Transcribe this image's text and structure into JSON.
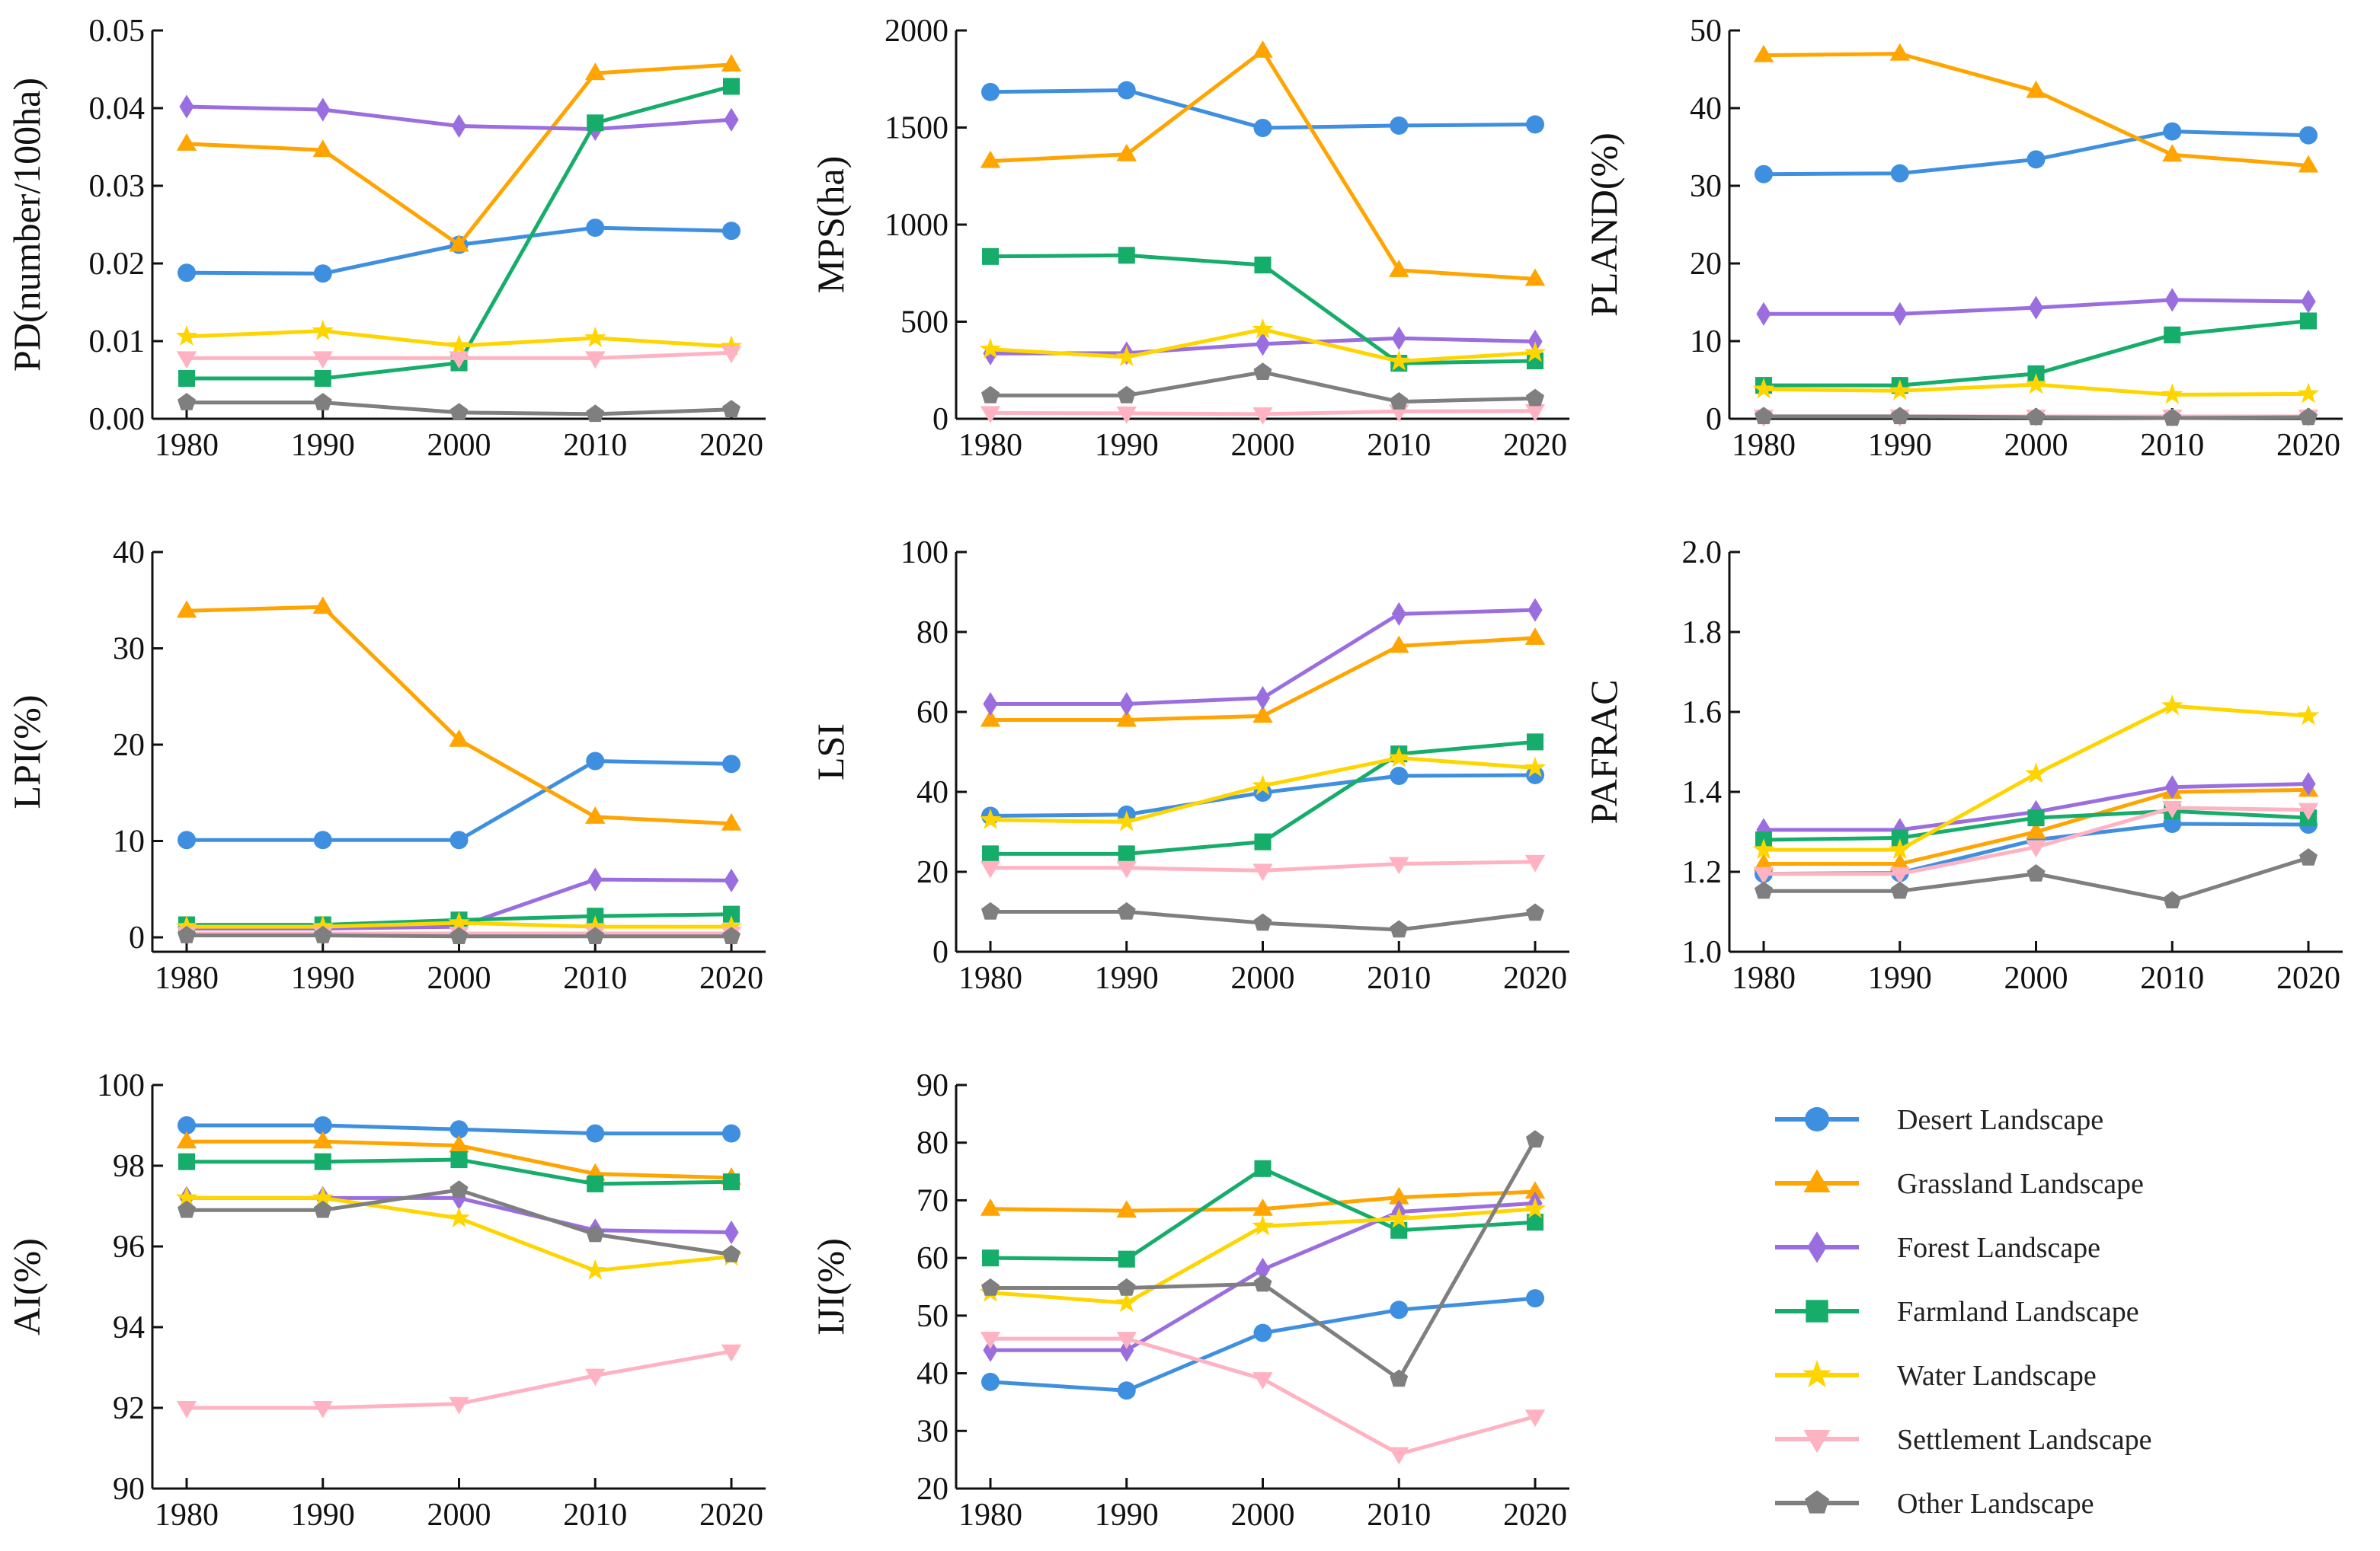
{
  "figure_title": "",
  "colors": {
    "Desert Landscape": "#3f8fe0",
    "Grassland Landscape": "#ffa400",
    "Forest Landscape": "#9b6ee0",
    "Farmland Landscape": "#16ad6a",
    "Water Landscape": "#ffd500",
    "Settlement Landscape": "#ffb3c2",
    "Other Landscape": "#7f7f7f"
  },
  "markers": {
    "Desert Landscape": "circle",
    "Grassland Landscape": "triangle-up",
    "Forest Landscape": "diamond",
    "Farmland Landscape": "square",
    "Water Landscape": "star",
    "Settlement Landscape": "triangle-down",
    "Other Landscape": "pentagon"
  },
  "legend": {
    "entries": [
      "Desert Landscape",
      "Grassland Landscape",
      "Forest Landscape",
      "Farmland Landscape",
      "Water Landscape",
      "Settlement Landscape",
      "Other Landscape"
    ]
  },
  "chart_data": [
    {
      "type": "line",
      "title": "",
      "ylabel": "PD(number/100ha)",
      "xlabel": "",
      "categories": [
        "1980",
        "1990",
        "2000",
        "2010",
        "2020"
      ],
      "ylim": [
        0,
        0.05
      ],
      "yticks": [
        "0.00",
        "0.01",
        "0.02",
        "0.03",
        "0.04",
        "0.05"
      ],
      "series": [
        {
          "name": "Desert Landscape",
          "values": [
            0.0188,
            0.0187,
            0.0224,
            0.0246,
            0.0242
          ]
        },
        {
          "name": "Grassland Landscape",
          "values": [
            0.0354,
            0.0346,
            0.0224,
            0.0445,
            0.0456
          ]
        },
        {
          "name": "Forest Landscape",
          "values": [
            0.0402,
            0.0398,
            0.0377,
            0.0373,
            0.0385
          ]
        },
        {
          "name": "Farmland Landscape",
          "values": [
            0.0052,
            0.0052,
            0.0072,
            0.0381,
            0.0428
          ]
        },
        {
          "name": "Water Landscape",
          "values": [
            0.0106,
            0.0113,
            0.0094,
            0.0104,
            0.0093
          ]
        },
        {
          "name": "Settlement Landscape",
          "values": [
            0.0078,
            0.0078,
            0.0078,
            0.0078,
            0.0085
          ]
        },
        {
          "name": "Other Landscape",
          "values": [
            0.0021,
            0.0021,
            0.0008,
            0.0006,
            0.0012
          ]
        }
      ]
    },
    {
      "type": "line",
      "title": "",
      "ylabel": "MPS(ha)",
      "xlabel": "",
      "categories": [
        "1980",
        "1990",
        "2000",
        "2010",
        "2020"
      ],
      "ylim": [
        0,
        2000
      ],
      "yticks": [
        "0",
        "500",
        "1000",
        "1500",
        "2000"
      ],
      "series": [
        {
          "name": "Desert Landscape",
          "values": [
            1683,
            1692,
            1498,
            1510,
            1516
          ]
        },
        {
          "name": "Grassland Landscape",
          "values": [
            1327,
            1362,
            1895,
            765,
            720
          ]
        },
        {
          "name": "Forest Landscape",
          "values": [
            336,
            338,
            385,
            415,
            398
          ]
        },
        {
          "name": "Farmland Landscape",
          "values": [
            836,
            842,
            792,
            286,
            298
          ]
        },
        {
          "name": "Water Landscape",
          "values": [
            358,
            318,
            460,
            296,
            340
          ]
        },
        {
          "name": "Settlement Landscape",
          "values": [
            30,
            28,
            24,
            38,
            40
          ]
        },
        {
          "name": "Other Landscape",
          "values": [
            120,
            120,
            240,
            88,
            105
          ]
        }
      ]
    },
    {
      "type": "line",
      "title": "",
      "ylabel": "PLAND(%)",
      "xlabel": "",
      "categories": [
        "1980",
        "1990",
        "2000",
        "2010",
        "2020"
      ],
      "ylim": [
        0,
        50
      ],
      "yticks": [
        "0",
        "10",
        "20",
        "30",
        "40",
        "50"
      ],
      "series": [
        {
          "name": "Desert Landscape",
          "values": [
            31.5,
            31.6,
            33.4,
            37.0,
            36.5
          ]
        },
        {
          "name": "Grassland Landscape",
          "values": [
            46.8,
            47.0,
            42.2,
            34.0,
            32.6
          ]
        },
        {
          "name": "Forest Landscape",
          "values": [
            13.5,
            13.5,
            14.3,
            15.3,
            15.1
          ]
        },
        {
          "name": "Farmland Landscape",
          "values": [
            4.3,
            4.3,
            5.8,
            10.8,
            12.6
          ]
        },
        {
          "name": "Water Landscape",
          "values": [
            3.8,
            3.6,
            4.4,
            3.1,
            3.2
          ]
        },
        {
          "name": "Settlement Landscape",
          "values": [
            0.3,
            0.3,
            0.3,
            0.3,
            0.3
          ]
        },
        {
          "name": "Other Landscape",
          "values": [
            0.3,
            0.3,
            0.2,
            0.1,
            0.2
          ]
        }
      ]
    },
    {
      "type": "line",
      "title": "",
      "ylabel": "LPI(%)",
      "xlabel": "",
      "categories": [
        "1980",
        "1990",
        "2000",
        "2010",
        "2020"
      ],
      "ylim": [
        -1.5,
        40
      ],
      "yticks": [
        "0",
        "10",
        "20",
        "30",
        "40"
      ],
      "series": [
        {
          "name": "Desert Landscape",
          "values": [
            10.1,
            10.1,
            10.1,
            18.3,
            18.0
          ]
        },
        {
          "name": "Grassland Landscape",
          "values": [
            33.9,
            34.3,
            20.5,
            12.5,
            11.8
          ]
        },
        {
          "name": "Forest Landscape",
          "values": [
            0.9,
            0.9,
            1.1,
            6.0,
            5.9
          ]
        },
        {
          "name": "Farmland Landscape",
          "values": [
            1.3,
            1.3,
            1.8,
            2.2,
            2.4
          ]
        },
        {
          "name": "Water Landscape",
          "values": [
            1.1,
            1.1,
            1.5,
            1.1,
            1.1
          ]
        },
        {
          "name": "Settlement Landscape",
          "values": [
            0.4,
            0.4,
            0.4,
            0.4,
            0.4
          ]
        },
        {
          "name": "Other Landscape",
          "values": [
            0.2,
            0.2,
            0.1,
            0.1,
            0.1
          ]
        }
      ]
    },
    {
      "type": "line",
      "title": "",
      "ylabel": "LSI",
      "xlabel": "",
      "categories": [
        "1980",
        "1990",
        "2000",
        "2010",
        "2020"
      ],
      "ylim": [
        0,
        100
      ],
      "yticks": [
        "0",
        "20",
        "40",
        "60",
        "80",
        "100"
      ],
      "series": [
        {
          "name": "Desert Landscape",
          "values": [
            34.0,
            34.3,
            39.8,
            44.0,
            44.2
          ]
        },
        {
          "name": "Grassland Landscape",
          "values": [
            58.0,
            58.0,
            59.0,
            76.5,
            78.5
          ]
        },
        {
          "name": "Forest Landscape",
          "values": [
            62.0,
            62.0,
            63.5,
            84.5,
            85.5
          ]
        },
        {
          "name": "Farmland Landscape",
          "values": [
            24.5,
            24.5,
            27.5,
            49.5,
            52.5
          ]
        },
        {
          "name": "Water Landscape",
          "values": [
            33.0,
            32.5,
            41.5,
            48.5,
            46.0
          ]
        },
        {
          "name": "Settlement Landscape",
          "values": [
            21.0,
            21.0,
            20.3,
            22.0,
            22.5
          ]
        },
        {
          "name": "Other Landscape",
          "values": [
            10.0,
            10.0,
            7.2,
            5.5,
            9.7
          ]
        }
      ]
    },
    {
      "type": "line",
      "title": "",
      "ylabel": "PAFRAC",
      "xlabel": "",
      "categories": [
        "1980",
        "1990",
        "2000",
        "2010",
        "2020"
      ],
      "ylim": [
        1.0,
        2.0
      ],
      "yticks": [
        "1.0",
        "1.2",
        "1.4",
        "1.6",
        "1.8",
        "2.0"
      ],
      "series": [
        {
          "name": "Desert Landscape",
          "values": [
            1.195,
            1.197,
            1.28,
            1.32,
            1.318
          ]
        },
        {
          "name": "Grassland Landscape",
          "values": [
            1.22,
            1.22,
            1.3,
            1.4,
            1.405
          ]
        },
        {
          "name": "Forest Landscape",
          "values": [
            1.305,
            1.305,
            1.35,
            1.412,
            1.42
          ]
        },
        {
          "name": "Farmland Landscape",
          "values": [
            1.28,
            1.285,
            1.335,
            1.352,
            1.335
          ]
        },
        {
          "name": "Water Landscape",
          "values": [
            1.255,
            1.255,
            1.445,
            1.615,
            1.59
          ]
        },
        {
          "name": "Settlement Landscape",
          "values": [
            1.195,
            1.195,
            1.262,
            1.36,
            1.355
          ]
        },
        {
          "name": "Other Landscape",
          "values": [
            1.152,
            1.152,
            1.195,
            1.128,
            1.235
          ]
        }
      ]
    },
    {
      "type": "line",
      "title": "",
      "ylabel": "AI(%)",
      "xlabel": "",
      "categories": [
        "1980",
        "1990",
        "2000",
        "2010",
        "2020"
      ],
      "ylim": [
        90,
        100
      ],
      "yticks": [
        "90",
        "92",
        "94",
        "96",
        "98",
        "100"
      ],
      "series": [
        {
          "name": "Desert Landscape",
          "values": [
            99.0,
            99.0,
            98.9,
            98.8,
            98.8
          ]
        },
        {
          "name": "Grassland Landscape",
          "values": [
            98.6,
            98.6,
            98.5,
            97.8,
            97.7
          ]
        },
        {
          "name": "Forest Landscape",
          "values": [
            97.2,
            97.2,
            97.2,
            96.4,
            96.35
          ]
        },
        {
          "name": "Farmland Landscape",
          "values": [
            98.1,
            98.1,
            98.15,
            97.55,
            97.6
          ]
        },
        {
          "name": "Water Landscape",
          "values": [
            97.2,
            97.2,
            96.7,
            95.4,
            95.75
          ]
        },
        {
          "name": "Settlement Landscape",
          "values": [
            92.0,
            92.0,
            92.1,
            92.8,
            93.4
          ]
        },
        {
          "name": "Other Landscape",
          "values": [
            96.9,
            96.9,
            97.4,
            96.3,
            95.8
          ]
        }
      ]
    },
    {
      "type": "line",
      "title": "",
      "ylabel": "IJI(%)",
      "xlabel": "",
      "categories": [
        "1980",
        "1990",
        "2000",
        "2010",
        "2020"
      ],
      "ylim": [
        20,
        90
      ],
      "yticks": [
        "20",
        "30",
        "40",
        "50",
        "60",
        "70",
        "80",
        "90"
      ],
      "series": [
        {
          "name": "Desert Landscape",
          "values": [
            38.5,
            37.0,
            47.0,
            51.0,
            53.0
          ]
        },
        {
          "name": "Grassland Landscape",
          "values": [
            68.5,
            68.2,
            68.5,
            70.5,
            71.5
          ]
        },
        {
          "name": "Forest Landscape",
          "values": [
            44.0,
            44.0,
            58.0,
            68.0,
            69.5
          ]
        },
        {
          "name": "Farmland Landscape",
          "values": [
            60.0,
            59.8,
            75.5,
            64.8,
            66.2
          ]
        },
        {
          "name": "Water Landscape",
          "values": [
            54.0,
            52.2,
            65.5,
            66.8,
            68.5
          ]
        },
        {
          "name": "Settlement Landscape",
          "values": [
            46.0,
            46.0,
            39.0,
            26.0,
            32.5
          ]
        },
        {
          "name": "Other Landscape",
          "values": [
            54.8,
            54.8,
            55.5,
            39.0,
            80.5
          ]
        }
      ]
    }
  ]
}
